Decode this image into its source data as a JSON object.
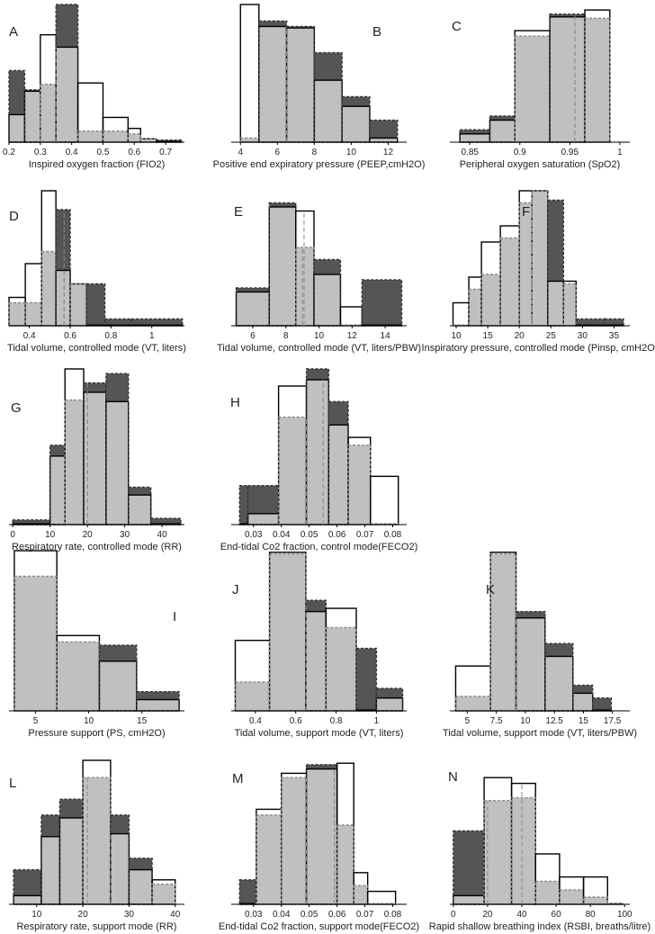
{
  "colors": {
    "unique_fill": "#555555",
    "overlap_fill": "#c0c0c0",
    "outline": "#000000",
    "dashed_outline": "#888888",
    "mean_line": "#888888"
  },
  "chart_data": [
    {
      "id": "A",
      "type": "bar",
      "letter": "A",
      "xlabel": "Inspired oxygen fraction (FIO2)",
      "xticks": [
        0.2,
        0.3,
        0.4,
        0.5,
        0.6,
        0.7
      ],
      "tick_labels": [
        "0.2",
        "0.3",
        "0.4",
        "0.5",
        "0.6",
        "0.7"
      ],
      "xlim": [
        0.2,
        0.76
      ],
      "ymax": 10,
      "edges": [
        0.2,
        0.25,
        0.3,
        0.35,
        0.42,
        0.5,
        0.58,
        0.62,
        0.67,
        0.75
      ],
      "series": [
        {
          "name": "",
          "values": [
            5.2,
            3.8,
            4.2,
            10,
            0.8,
            0.8,
            0.6,
            0.25,
            0.15
          ]
        },
        {
          "name": "",
          "values": [
            2,
            3.7,
            7.8,
            6.9,
            4.3,
            1.8,
            1,
            0.25,
            0.05
          ]
        }
      ],
      "means": [
        0.3,
        0.35
      ]
    },
    {
      "id": "B",
      "type": "bar",
      "letter": "B",
      "xlabel": "Positive end expiratory pressure (PEEP,cmH2O)",
      "xticks": [
        4,
        6,
        8,
        10,
        12
      ],
      "tick_labels": [
        "4",
        "6",
        "8",
        "10",
        "12"
      ],
      "xlim": [
        3.5,
        13
      ],
      "ymax": 10,
      "edges": [
        4,
        5,
        6.5,
        8,
        9.5,
        11,
        12.5
      ],
      "series": [
        {
          "name": "",
          "values": [
            0.3,
            8.8,
            8.4,
            6.5,
            3.3,
            1.6
          ]
        },
        {
          "name": "",
          "values": [
            10,
            8.4,
            8.3,
            4.5,
            2.6,
            0.3
          ]
        }
      ],
      "means": [
        6.5,
        6.5
      ]
    },
    {
      "id": "C",
      "type": "bar",
      "letter": "C",
      "xlabel": "Peripheral oxygen saturation (SpO2)",
      "xticks": [
        0.85,
        0.9,
        0.95,
        1
      ],
      "tick_labels": [
        "0.85",
        "0.9",
        "0.95",
        "1"
      ],
      "xlim": [
        0.83,
        1.01
      ],
      "ymax": 10,
      "edges": [
        0.84,
        0.87,
        0.895,
        0.93,
        0.965,
        0.99
      ],
      "series": [
        {
          "name": "",
          "values": [
            0.9,
            1.9,
            7.7,
            9.3,
            9.0
          ]
        },
        {
          "name": "",
          "values": [
            0.6,
            1.6,
            8.1,
            9.1,
            9.6
          ]
        }
      ],
      "means": [
        0.955,
        0.955
      ]
    },
    {
      "id": "D",
      "type": "bar",
      "letter": "D",
      "xlabel": "Tidal volume, controlled mode (VT, liters)",
      "xticks": [
        0.4,
        0.6,
        0.8,
        1
      ],
      "tick_labels": [
        "0.4",
        "0.6",
        "0.8",
        "1"
      ],
      "xlim": [
        0.3,
        1.16
      ],
      "ymax": 10,
      "edges": [
        0.3,
        0.38,
        0.46,
        0.53,
        0.6,
        0.68,
        0.77,
        0.9,
        1.15
      ],
      "series": [
        {
          "name": "",
          "values": [
            1.7,
            1.7,
            5.5,
            8.6,
            3.1,
            3.1,
            0.5,
            0.5
          ]
        },
        {
          "name": "",
          "values": [
            2.1,
            4.6,
            10,
            4.1,
            3.1,
            0.05,
            0.05,
            0.05
          ]
        }
      ],
      "means": [
        0.57,
        0.57
      ]
    },
    {
      "id": "E",
      "type": "bar",
      "letter": "E",
      "xlabel": "Tidal volume, controlled mode (VT, liters/PBW)",
      "xticks": [
        6,
        8,
        10,
        12,
        14
      ],
      "tick_labels": [
        "6",
        "8",
        "10",
        "12",
        "14"
      ],
      "xlim": [
        4.7,
        15.3
      ],
      "ymax": 10,
      "edges": [
        5,
        7,
        8.6,
        9.7,
        11.3,
        12.6,
        15
      ],
      "series": [
        {
          "name": "",
          "values": [
            2.8,
            9.1,
            5.8,
            4.9,
            0.05,
            3.4
          ]
        },
        {
          "name": "",
          "values": [
            2.5,
            8.8,
            8.5,
            3.8,
            1.4,
            0.05
          ]
        }
      ],
      "means": [
        9.0,
        9.1
      ]
    },
    {
      "id": "F",
      "type": "bar",
      "letter": "F",
      "xlabel": "Inspiratory pressure, controlled mode (Pinsp, cmH2O)",
      "xticks": [
        10,
        15,
        20,
        25,
        30,
        35
      ],
      "tick_labels": [
        "10",
        "15",
        "20",
        "25",
        "30",
        "35"
      ],
      "xlim": [
        9,
        37.5
      ],
      "ymax": 10,
      "edges": [
        9.5,
        12,
        14,
        17,
        20,
        22,
        24.5,
        27,
        29,
        33.5,
        36.5
      ],
      "series": [
        {
          "name": "",
          "values": [
            0.05,
            2.7,
            3.8,
            6.5,
            9.1,
            10,
            9.3,
            3.1,
            0.5,
            0.5
          ]
        },
        {
          "name": "",
          "values": [
            1.7,
            3.6,
            6.2,
            7.4,
            10,
            10,
            3.3,
            3.3,
            0.05,
            0.05
          ]
        }
      ],
      "means": [
        22,
        22
      ]
    },
    {
      "id": "G",
      "type": "bar",
      "letter": "G",
      "xlabel": "Respiratory rate, controlled mode (RR)",
      "xticks": [
        0,
        10,
        20,
        30,
        40
      ],
      "tick_labels": [
        "0",
        "10",
        "20",
        "30",
        "40"
      ],
      "xlim": [
        -1,
        46
      ],
      "ymax": 10,
      "edges": [
        0,
        10,
        14,
        19,
        25,
        31,
        37,
        45
      ],
      "series": [
        {
          "name": "",
          "values": [
            0.3,
            5.1,
            8.0,
            9.1,
            9.7,
            2.4,
            0.4
          ]
        },
        {
          "name": "",
          "values": [
            0.05,
            4.4,
            10,
            8.5,
            7.9,
            1.9,
            0.05
          ]
        }
      ],
      "means": [
        20,
        20
      ]
    },
    {
      "id": "H",
      "type": "bar",
      "letter": "H",
      "xlabel": "End-tidal Co2 fraction, control mode(FECO2)",
      "xticks": [
        0.03,
        0.04,
        0.05,
        0.06,
        0.07,
        0.08
      ],
      "tick_labels": [
        "0.03",
        "0.04",
        "0.05",
        "0.06",
        "0.07",
        "0.08"
      ],
      "xlim": [
        0.022,
        0.085
      ],
      "ymax": 10,
      "edges": [
        0.025,
        0.028,
        0.039,
        0.049,
        0.057,
        0.064,
        0.072,
        0.082
      ],
      "series": [
        {
          "name": "",
          "values": [
            2.5,
            2.5,
            6.9,
            10,
            7.9,
            5.1,
            0.05
          ]
        },
        {
          "name": "",
          "values": [
            0.05,
            0.7,
            8.9,
            9.3,
            6.4,
            5.6,
            3.1
          ]
        }
      ],
      "means": [
        0.049,
        0.055
      ]
    },
    {
      "id": "I",
      "type": "bar",
      "letter": "I",
      "xlabel": "Pressure support (PS, cmH2O)",
      "xticks": [
        5,
        10,
        15
      ],
      "tick_labels": [
        "5",
        "10",
        "15"
      ],
      "xlim": [
        2.5,
        19
      ],
      "ymax": 10,
      "edges": [
        3,
        7,
        11,
        14.5,
        18.5
      ],
      "series": [
        {
          "name": "",
          "values": [
            8.4,
            4.3,
            4.1,
            1.2
          ]
        },
        {
          "name": "",
          "values": [
            10,
            4.7,
            3.1,
            0.7
          ]
        }
      ],
      "means": [
        null,
        null
      ]
    },
    {
      "id": "J",
      "type": "bar",
      "letter": "J",
      "xlabel": "Tidal volume, support mode (VT, liters)",
      "xticks": [
        0.4,
        0.6,
        0.8,
        1
      ],
      "tick_labels": [
        "0.4",
        "0.6",
        "0.8",
        "1"
      ],
      "xlim": [
        0.28,
        1.15
      ],
      "ymax": 10,
      "edges": [
        0.3,
        0.47,
        0.65,
        0.75,
        0.9,
        1.0,
        1.13
      ],
      "series": [
        {
          "name": "",
          "values": [
            1.8,
            9.8,
            6.9,
            5.2,
            3.9,
            1.4
          ]
        },
        {
          "name": "",
          "values": [
            4.4,
            9.9,
            6.2,
            6.4,
            0.05,
            0.8
          ]
        }
      ],
      "means": [
        0.65,
        0.65
      ]
    },
    {
      "id": "K",
      "type": "bar",
      "letter": "K",
      "xlabel": "Tidal volume, support mode (VT, liters/PBW)",
      "xticks": [
        5,
        7.5,
        10,
        12.5,
        15,
        17.5
      ],
      "tick_labels": [
        "5",
        "7.5",
        "10",
        "12.5",
        "15",
        "17.5"
      ],
      "xlim": [
        3.5,
        19
      ],
      "ymax": 10,
      "edges": [
        4,
        7,
        9.2,
        11.7,
        14.1,
        15.8,
        17.4
      ],
      "series": [
        {
          "name": "",
          "values": [
            0.9,
            9.8,
            6.2,
            4.2,
            1.6,
            0.8
          ]
        },
        {
          "name": "",
          "values": [
            2.8,
            9.9,
            5.8,
            3.4,
            1.1,
            0.05
          ]
        }
      ],
      "means": [
        9.2,
        9.2
      ]
    },
    {
      "id": "L",
      "type": "bar",
      "letter": "L",
      "xlabel": "Respiratory rate, support mode (RR)",
      "xticks": [
        10,
        20,
        30,
        40
      ],
      "tick_labels": [
        "10",
        "20",
        "30",
        "40"
      ],
      "xlim": [
        4,
        42
      ],
      "ymax": 10,
      "edges": [
        5,
        11,
        15,
        20,
        26,
        30,
        35,
        40
      ],
      "series": [
        {
          "name": "",
          "values": [
            2.4,
            6.2,
            7.3,
            8.8,
            6.2,
            3.2,
            1.4
          ]
        },
        {
          "name": "",
          "values": [
            0.6,
            4.7,
            6.0,
            10,
            4.9,
            2.4,
            1.7
          ]
        }
      ],
      "means": [
        21,
        26
      ]
    },
    {
      "id": "M",
      "type": "bar",
      "letter": "M",
      "xlabel": "End-tidal Co2 fraction, support mode(FECO2)",
      "xticks": [
        0.03,
        0.04,
        0.05,
        0.06,
        0.07,
        0.08
      ],
      "tick_labels": [
        "0.03",
        "0.04",
        "0.05",
        "0.06",
        "0.07",
        "0.08"
      ],
      "xlim": [
        0.022,
        0.085
      ],
      "ymax": 10,
      "edges": [
        0.025,
        0.031,
        0.04,
        0.049,
        0.06,
        0.066,
        0.071,
        0.081
      ],
      "series": [
        {
          "name": "",
          "values": [
            1.7,
            6.2,
            8.8,
            9.7,
            5.5,
            1.3,
            0.05
          ]
        },
        {
          "name": "",
          "values": [
            0.05,
            6.6,
            9.1,
            9.4,
            9.8,
            2.2,
            0.9
          ]
        }
      ],
      "means": [
        0.049,
        0.059
      ]
    },
    {
      "id": "N",
      "type": "bar",
      "letter": "N",
      "xlabel": "Rapid shallow breathing index (RSBI, breaths/litre)",
      "xticks": [
        0,
        20,
        40,
        60,
        80,
        100
      ],
      "tick_labels": [
        "0",
        "20",
        "40",
        "60",
        "80",
        "100"
      ],
      "xlim": [
        -2,
        103
      ],
      "ymax": 10,
      "edges": [
        0,
        18,
        34,
        48,
        62,
        76,
        90,
        99
      ],
      "series": [
        {
          "name": "",
          "values": [
            5.1,
            7.2,
            7.4,
            1.6,
            1.0,
            0.5,
            0.05
          ]
        },
        {
          "name": "",
          "values": [
            0.6,
            8.8,
            8.4,
            3.5,
            1.9,
            1.9,
            0.05
          ]
        }
      ],
      "means": [
        20,
        40
      ]
    }
  ]
}
